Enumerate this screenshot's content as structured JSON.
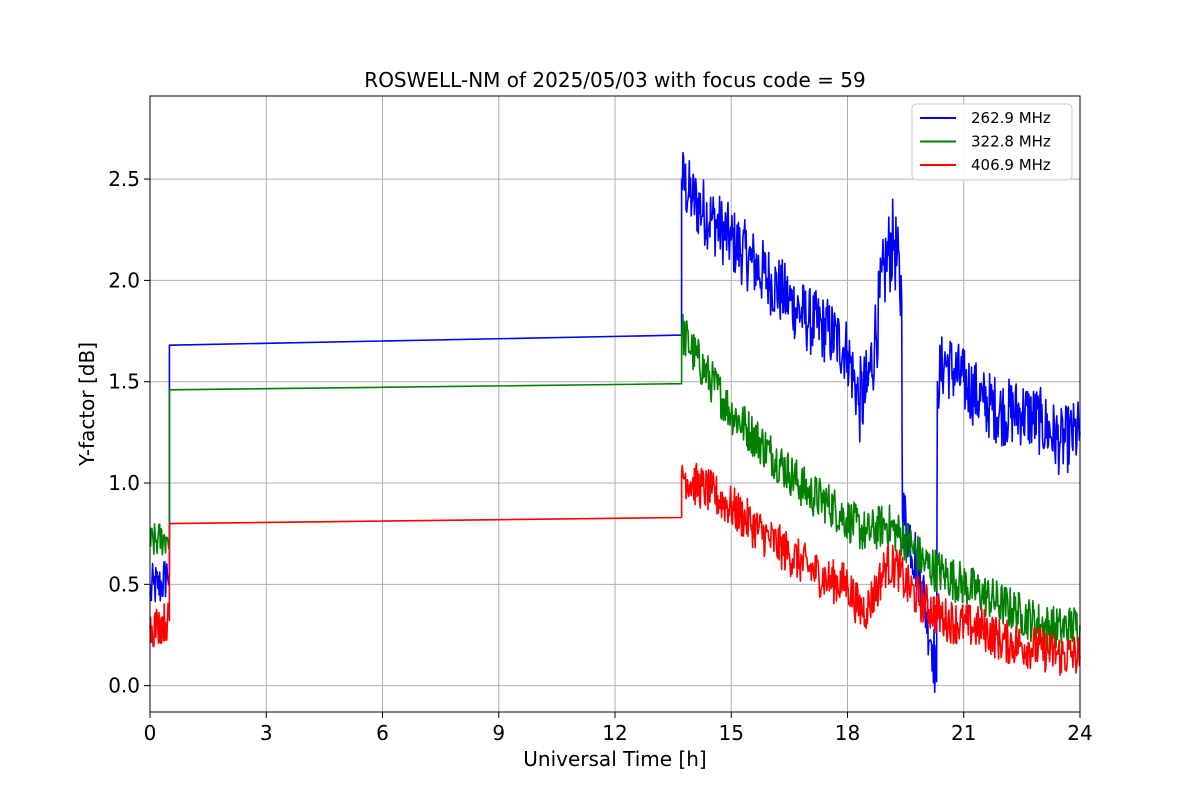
{
  "chart_data": {
    "type": "line",
    "title": "ROSWELL-NM of 2025/05/03 with focus code = 59",
    "xlabel": "Universal Time [h]",
    "ylabel": "Y-factor [dB]",
    "xlim": [
      0,
      24
    ],
    "ylim": [
      -0.13,
      2.91
    ],
    "xticks": [
      0,
      3,
      6,
      9,
      12,
      15,
      18,
      21,
      24
    ],
    "xtick_labels": [
      "0",
      "3",
      "6",
      "9",
      "12",
      "15",
      "18",
      "21",
      "24"
    ],
    "yticks": [
      0.0,
      0.5,
      1.0,
      1.5,
      2.0,
      2.5
    ],
    "ytick_labels": [
      "0.0",
      "0.5",
      "1.0",
      "1.5",
      "2.0",
      "2.5"
    ],
    "grid": true,
    "legend_position": "top-right",
    "series": [
      {
        "name": "262.9 MHz",
        "color": "#0000ff",
        "x": [
          0,
          0.1,
          0.2,
          0.3,
          0.45,
          0.5,
          0.5,
          13.72,
          13.72,
          13.72,
          14.0,
          14.5,
          15.0,
          15.5,
          16.0,
          16.5,
          17.0,
          17.5,
          18.0,
          18.3,
          18.5,
          18.7,
          19.0,
          19.2,
          19.4,
          19.42,
          19.6,
          19.8,
          20.0,
          20.2,
          20.3,
          20.32,
          20.5,
          21.0,
          21.5,
          22.0,
          22.5,
          23.0,
          23.5,
          24.0
        ],
        "y": [
          0.45,
          0.5,
          0.48,
          0.5,
          0.55,
          0.55,
          1.68,
          1.73,
          2.3,
          2.5,
          2.4,
          2.3,
          2.2,
          2.1,
          2.0,
          1.9,
          1.8,
          1.75,
          1.65,
          1.4,
          1.45,
          1.7,
          2.1,
          2.2,
          1.9,
          0.85,
          0.75,
          0.6,
          0.4,
          0.2,
          0.02,
          1.5,
          1.6,
          1.5,
          1.4,
          1.35,
          1.35,
          1.3,
          1.2,
          1.25
        ]
      },
      {
        "name": "322.8 MHz",
        "color": "#008000",
        "x": [
          0,
          0.2,
          0.45,
          0.5,
          0.5,
          13.72,
          13.72,
          14.0,
          14.5,
          15.0,
          15.5,
          16.0,
          16.5,
          17.0,
          17.5,
          18.0,
          18.5,
          19.0,
          19.5,
          20.0,
          20.5,
          21.0,
          21.5,
          22.0,
          22.5,
          23.0,
          23.5,
          24.0
        ],
        "y": [
          0.7,
          0.72,
          0.73,
          0.73,
          1.46,
          1.49,
          1.75,
          1.65,
          1.5,
          1.35,
          1.25,
          1.15,
          1.05,
          0.95,
          0.9,
          0.82,
          0.75,
          0.8,
          0.72,
          0.6,
          0.55,
          0.5,
          0.45,
          0.4,
          0.35,
          0.3,
          0.28,
          0.3
        ]
      },
      {
        "name": "406.9 MHz",
        "color": "#ff0000",
        "x": [
          0,
          0.2,
          0.45,
          0.5,
          0.5,
          13.72,
          13.72,
          14.0,
          14.5,
          15.0,
          15.5,
          16.0,
          16.5,
          17.0,
          17.5,
          18.0,
          18.3,
          18.5,
          18.8,
          19.0,
          19.3,
          19.5,
          20.0,
          20.5,
          21.0,
          21.5,
          22.0,
          22.5,
          23.0,
          23.5,
          24.0
        ],
        "y": [
          0.28,
          0.3,
          0.32,
          0.32,
          0.8,
          0.83,
          1.05,
          1.0,
          0.95,
          0.88,
          0.8,
          0.72,
          0.65,
          0.58,
          0.52,
          0.5,
          0.38,
          0.38,
          0.5,
          0.6,
          0.58,
          0.5,
          0.4,
          0.33,
          0.3,
          0.28,
          0.22,
          0.2,
          0.18,
          0.15,
          0.15
        ]
      }
    ]
  }
}
